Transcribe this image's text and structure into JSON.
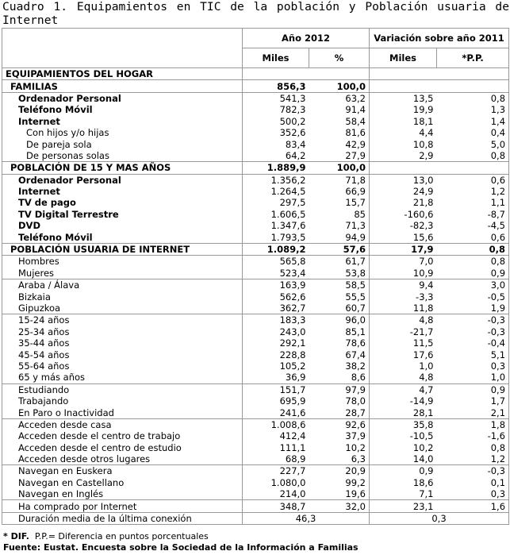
{
  "title": "Cuadro 1. Equipamientos en TIC de la población y Población usuaria de Internet",
  "table": {
    "header_groups": [
      "Año 2012",
      "Variación sobre año 2011"
    ],
    "header_columns": [
      "Miles",
      "%",
      "Miles",
      "*P.P."
    ],
    "rows": [
      [
        "EQUIPAMIENTOS DEL HOGAR"
      ],
      [
        "FAMILIAS",
        "856,3",
        "100,0"
      ],
      [
        "Ordenador Personal",
        "541,3",
        "63,2",
        "13,5",
        "0,8"
      ],
      [
        "Teléfono Móvil",
        "782,3",
        "91,4",
        "19,9",
        "1,3"
      ],
      [
        "Internet",
        "500,2",
        "58,4",
        "18,1",
        "1,4"
      ],
      [
        "Con hijos y/o hijas",
        "352,6",
        "81,6",
        "4,4",
        "0,4"
      ],
      [
        "De pareja sola",
        "83,4",
        "42,9",
        "10,8",
        "5,0"
      ],
      [
        "De personas solas",
        "64,2",
        "27,9",
        "2,9",
        "0,8"
      ],
      [
        "POBLACIÓN DE 15 Y MAS AÑOS",
        "1.889,9",
        "100,0"
      ],
      [
        "Ordenador Personal",
        "1.356,2",
        "71,8",
        "13,0",
        "0,6"
      ],
      [
        "Internet",
        "1.264,5",
        "66,9",
        "24,9",
        "1,2"
      ],
      [
        "TV de pago",
        "297,5",
        "15,7",
        "21,8",
        "1,1"
      ],
      [
        "TV Digital Terrestre",
        "1.606,5",
        "85",
        "-160,6",
        "-8,7"
      ],
      [
        "DVD",
        "1.347,6",
        "71,3",
        "-82,3",
        "-4,5"
      ],
      [
        "Teléfono Móvil",
        "1.793,5",
        "94,9",
        "15,6",
        "0,6"
      ],
      [
        "POBLACIÓN USUARIA DE INTERNET",
        "1.089,2",
        "57,6",
        "17,9",
        "0,8"
      ],
      [
        "Hombres",
        "565,8",
        "61,7",
        "7,0",
        "0,8"
      ],
      [
        "Mujeres",
        "523,4",
        "53,8",
        "10,9",
        "0,9"
      ],
      [
        "Araba / Álava",
        "163,9",
        "58,5",
        "9,4",
        "3,0"
      ],
      [
        "Bizkaia",
        "562,6",
        "55,5",
        "-3,3",
        "-0,5"
      ],
      [
        "Gipuzkoa",
        "362,7",
        "60,7",
        "11,8",
        "1,9"
      ],
      [
        "15-24 años",
        "183,3",
        "96,0",
        "4,8",
        "-0,3"
      ],
      [
        "25-34 años",
        "243,0",
        "85,1",
        "-21,7",
        "-0,3"
      ],
      [
        "35-44 años",
        "292,1",
        "78,6",
        "11,5",
        "-0,4"
      ],
      [
        "45-54 años",
        "228,8",
        "67,4",
        "17,6",
        "5,1"
      ],
      [
        "55-64 años",
        "105,2",
        "38,2",
        "1,0",
        "0,3"
      ],
      [
        "65 y más años",
        "36,9",
        "8,6",
        "4,8",
        "1,0"
      ],
      [
        "Estudiando",
        "151,7",
        "97,9",
        "4,7",
        "0,9"
      ],
      [
        "Trabajando",
        "695,9",
        "78,0",
        "-14,9",
        "1,7"
      ],
      [
        "En Paro o Inactividad",
        "241,6",
        "28,7",
        "28,1",
        "2,1"
      ],
      [
        "Acceden desde casa",
        "1.008,6",
        "92,6",
        "35,8",
        "1,8"
      ],
      [
        "Acceden desde el centro de trabajo",
        "412,4",
        "37,9",
        "-10,5",
        "-1,6"
      ],
      [
        "Acceden desde el centro de estudio",
        "111,1",
        "10,2",
        "10,2",
        "0,8"
      ],
      [
        "Acceden desde otros lugares",
        "68,9",
        "6,3",
        "14,0",
        "1,2"
      ],
      [
        "Navegan en Euskera",
        "227,7",
        "20,9",
        "0,9",
        "-0,3"
      ],
      [
        "Navegan en Castellano",
        "1.080,0",
        "99,2",
        "18,6",
        "0,1"
      ],
      [
        "Navegan en Inglés",
        "214,0",
        "19,6",
        "7,1",
        "0,3"
      ],
      [
        "Ha comprado por Internet",
        "348,7",
        "32,0",
        "23,1",
        "1,6"
      ],
      [
        "Duración media de la última conexión",
        "46,3",
        "0,3"
      ]
    ]
  },
  "footer": {
    "note_mark": "* DIF.",
    "note": "P.P.= Diferencia en puntos porcentuales",
    "source": "Fuente: Eustat. Encuesta sobre la Sociedad de la Información a Familias"
  }
}
